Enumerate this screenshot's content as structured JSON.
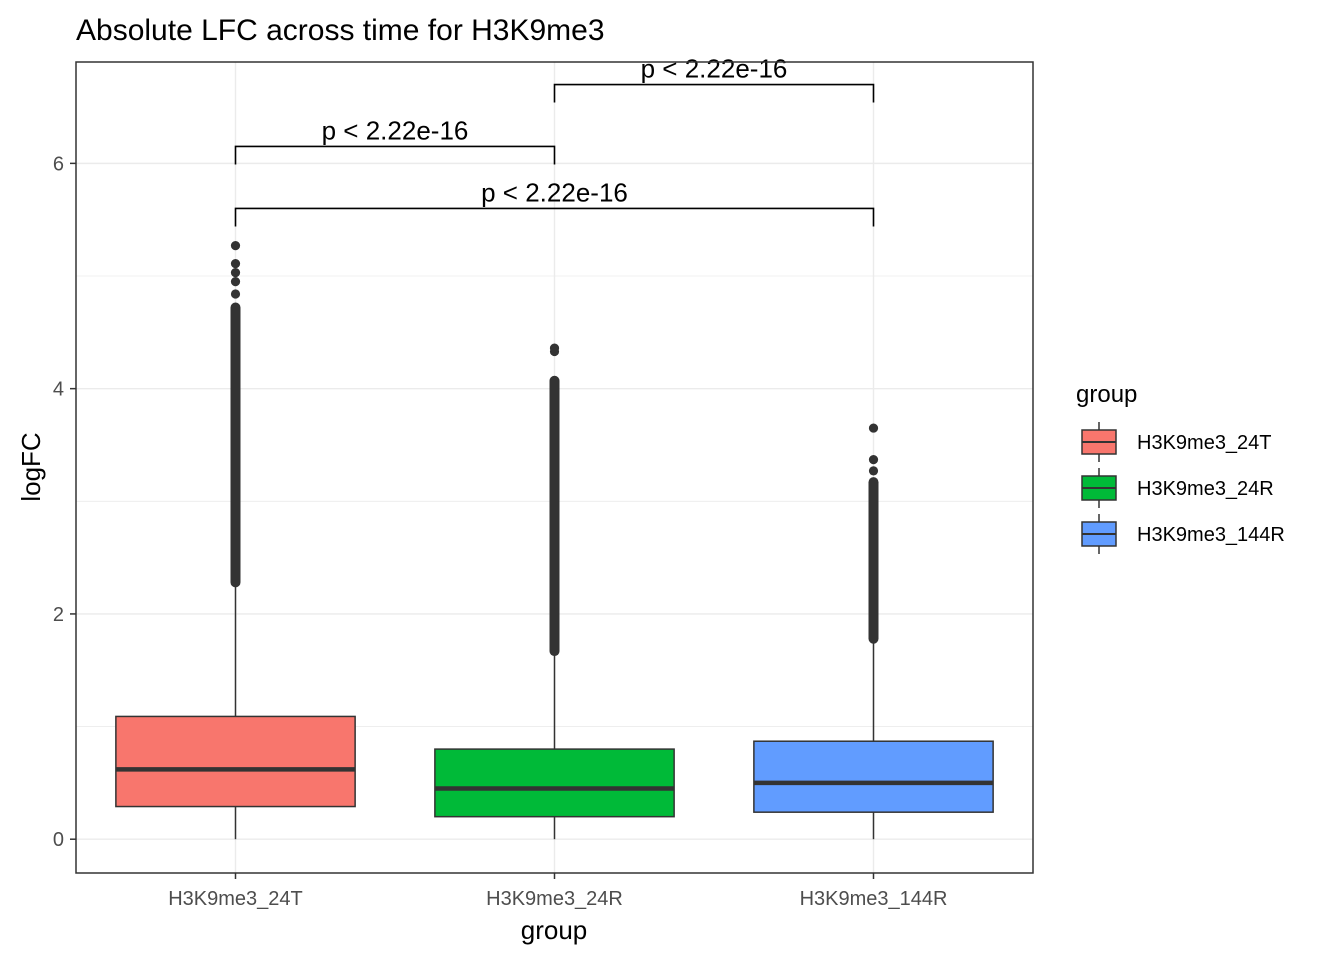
{
  "chart_data": {
    "type": "box",
    "title": "Absolute LFC across time for H3K9me3",
    "xlabel": "group",
    "ylabel": "logFC",
    "ylim": [
      -0.3,
      6.9
    ],
    "yticks": [
      0,
      2,
      4,
      6
    ],
    "grid": true,
    "legend": {
      "title": "group",
      "position": "right",
      "entries": [
        "H3K9me3_24T",
        "H3K9me3_24R",
        "H3K9me3_144R"
      ]
    },
    "categories": [
      "H3K9me3_24T",
      "H3K9me3_24R",
      "H3K9me3_144R"
    ],
    "colors": [
      "#F8766D",
      "#00BA38",
      "#619CFF"
    ],
    "boxes": [
      {
        "group": "H3K9me3_24T",
        "whisker_low": 0.0,
        "q1": 0.29,
        "median": 0.62,
        "q3": 1.09,
        "whisker_high": 2.28,
        "outlier_range": [
          2.28,
          4.72
        ],
        "outliers": [
          4.84,
          4.95,
          5.03,
          5.11,
          5.27
        ]
      },
      {
        "group": "H3K9me3_24R",
        "whisker_low": 0.0,
        "q1": 0.2,
        "median": 0.45,
        "q3": 0.8,
        "whisker_high": 1.67,
        "outlier_range": [
          1.67,
          4.07
        ],
        "outliers": [
          4.33,
          4.36
        ]
      },
      {
        "group": "H3K9me3_144R",
        "whisker_low": 0.0,
        "q1": 0.24,
        "median": 0.5,
        "q3": 0.87,
        "whisker_high": 1.78,
        "outlier_range": [
          1.78,
          3.17
        ],
        "outliers": [
          3.27,
          3.37,
          3.65
        ]
      }
    ],
    "comparisons": [
      {
        "from": "H3K9me3_24R",
        "to": "H3K9me3_144R",
        "label": "p < 2.22e-16"
      },
      {
        "from": "H3K9me3_24T",
        "to": "H3K9me3_24R",
        "label": "p < 2.22e-16"
      },
      {
        "from": "H3K9me3_24T",
        "to": "H3K9me3_144R",
        "label": "p < 2.22e-16"
      }
    ]
  }
}
